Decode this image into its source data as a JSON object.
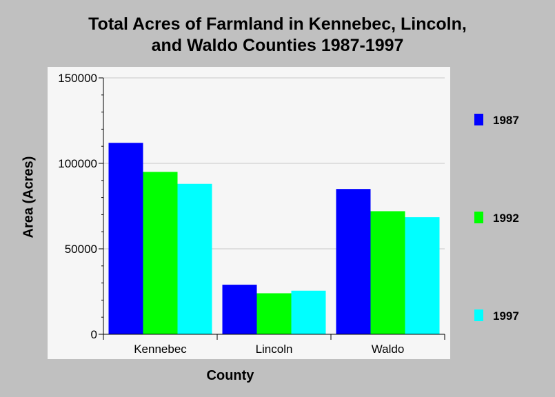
{
  "chart_data": {
    "type": "bar",
    "title": [
      "Total Acres of Farmland in Kennebec, Lincoln,",
      "and Waldo Counties 1987-1997"
    ],
    "xlabel": "County",
    "ylabel": "Area (Acres)",
    "categories": [
      "Kennebec",
      "Lincoln",
      "Waldo"
    ],
    "series": [
      {
        "name": "1987",
        "color": "#0000ff",
        "values": [
          112000,
          29000,
          85000
        ]
      },
      {
        "name": "1992",
        "color": "#00ff00",
        "values": [
          95000,
          24000,
          72000
        ]
      },
      {
        "name": "1997",
        "color": "#00ffff",
        "values": [
          88000,
          25500,
          68500
        ]
      }
    ],
    "ylim": [
      0,
      150000
    ],
    "yticks": [
      0,
      50000,
      100000,
      150000
    ],
    "grid": true,
    "legend_position": "right"
  }
}
